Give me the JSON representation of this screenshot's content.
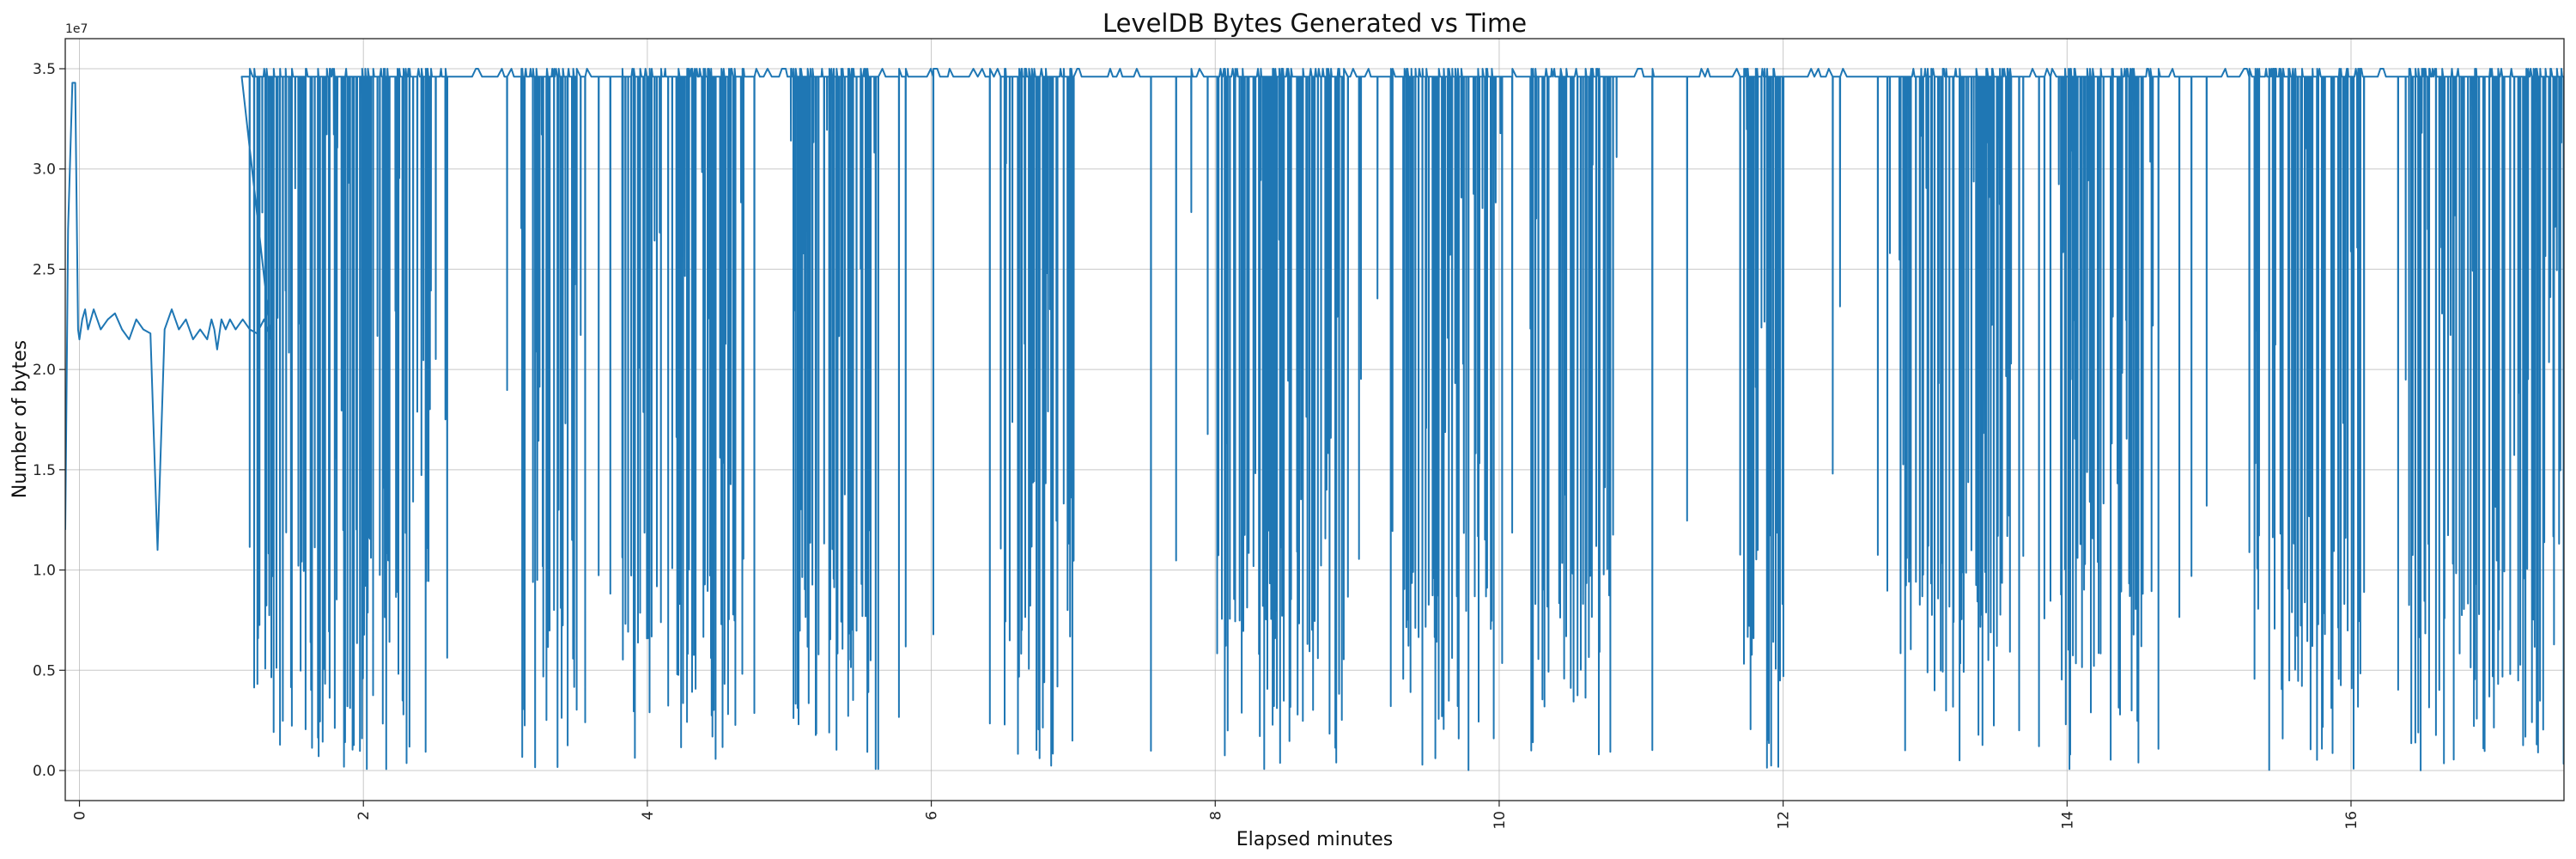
{
  "chart_data": {
    "type": "line",
    "title": "LevelDB Bytes Generated vs Time",
    "xlabel": "Elapsed minutes",
    "ylabel": "Number of bytes",
    "y_offset_label": "1e7",
    "xlim": [
      -0.1,
      17.5
    ],
    "ylim": [
      -0.15,
      3.65
    ],
    "y_scale": 10000000,
    "grid": true,
    "x_ticks": [
      0,
      2,
      4,
      6,
      8,
      10,
      12,
      14,
      16
    ],
    "x_tick_labels": [
      "0",
      "2",
      "4",
      "6",
      "8",
      "10",
      "12",
      "14",
      "16"
    ],
    "y_ticks": [
      0.0,
      0.5,
      1.0,
      1.5,
      2.0,
      2.5,
      3.0,
      3.5
    ],
    "y_tick_labels": [
      "0.0",
      "0.5",
      "1.0",
      "1.5",
      "2.0",
      "2.5",
      "3.0",
      "3.5"
    ],
    "line_color": "#1f77b4",
    "series": [
      {
        "name": "bytes",
        "description_values": "Values in units of 1e7 bytes, sampled approximately",
        "x": [
          -0.1,
          -0.08,
          -0.05,
          -0.03,
          -0.01,
          0.0,
          0.02,
          0.04,
          0.06,
          0.08,
          0.1,
          0.15,
          0.2,
          0.25,
          0.3,
          0.35,
          0.4,
          0.45,
          0.5,
          0.55,
          0.6,
          0.65,
          0.7,
          0.75,
          0.8,
          0.85,
          0.9,
          0.93,
          0.95,
          0.97,
          1.0,
          1.03,
          1.06,
          1.1,
          1.15,
          1.2,
          1.25,
          1.3,
          1.35
        ],
        "y": [
          1.2,
          2.7,
          3.43,
          3.43,
          2.2,
          2.15,
          2.25,
          2.3,
          2.2,
          2.25,
          2.3,
          2.2,
          2.25,
          2.28,
          2.2,
          2.15,
          2.25,
          2.2,
          2.18,
          1.1,
          2.2,
          2.3,
          2.2,
          2.25,
          2.15,
          2.2,
          2.15,
          2.25,
          2.2,
          2.1,
          2.25,
          2.2,
          2.25,
          2.2,
          2.25,
          2.2,
          2.18,
          2.25,
          2.15
        ]
      }
    ],
    "dense_phase": {
      "x_start": 1.12,
      "x_end": 17.5,
      "top_value": 3.46,
      "peak_value": 3.5,
      "min_value": 0.0,
      "quiet_windows": [
        [
          2.7,
          3.1
        ],
        [
          6.0,
          6.4
        ],
        [
          7.1,
          7.7
        ],
        [
          10.9,
          11.5
        ],
        [
          12.0,
          12.6
        ],
        [
          14.9,
          15.3
        ]
      ],
      "dense_windows": [
        [
          1.2,
          2.6
        ],
        [
          3.1,
          3.5
        ],
        [
          3.8,
          4.7
        ],
        [
          5.0,
          5.6
        ],
        [
          6.5,
          7.0
        ],
        [
          8.0,
          8.9
        ],
        [
          9.3,
          10.0
        ],
        [
          10.2,
          10.8
        ],
        [
          11.7,
          12.0
        ],
        [
          12.8,
          13.6
        ],
        [
          13.9,
          14.6
        ],
        [
          15.3,
          16.1
        ],
        [
          16.4,
          17.5
        ]
      ]
    }
  }
}
